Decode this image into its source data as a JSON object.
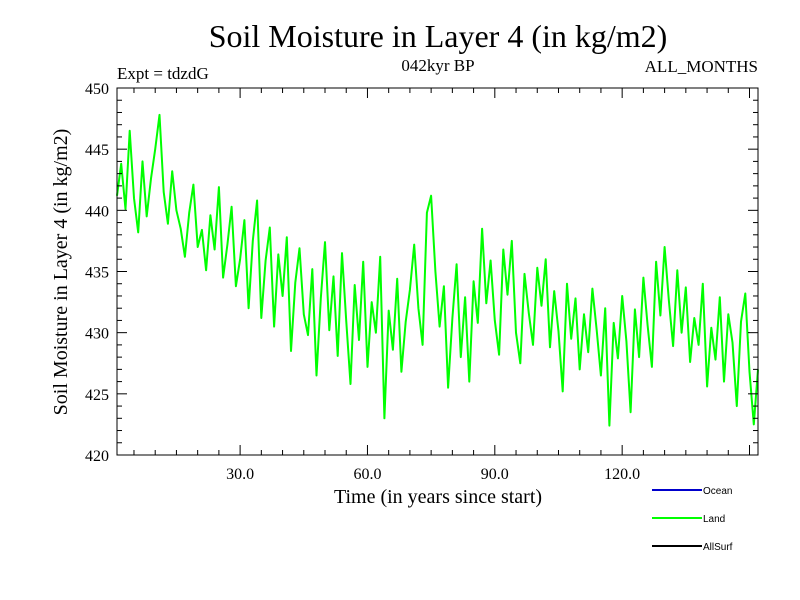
{
  "chart_data": {
    "type": "line",
    "title": "Soil Moisture in Layer 4 (in kg/m2)",
    "subtitle_left": "Expt = tdzdG",
    "subtitle_center": "042kyr BP",
    "subtitle_right": "ALL_MONTHS",
    "xlabel": "Time (in years since start)",
    "ylabel": "Soil Moisture in Layer 4 (in kg/m2)",
    "xlim": [
      1,
      152
    ],
    "ylim": [
      420,
      450
    ],
    "xticks": [
      30,
      60,
      90,
      120
    ],
    "xtick_labels": [
      "30.0",
      "60.0",
      "90.0",
      "120.0"
    ],
    "yticks": [
      420,
      425,
      430,
      435,
      440,
      445,
      450
    ],
    "ytick_labels": [
      "420",
      "425",
      "430",
      "435",
      "440",
      "445",
      "450"
    ],
    "grid": false,
    "legend_position": "bottom-right",
    "legend": [
      {
        "name": "Ocean",
        "color": "#0000cc"
      },
      {
        "name": "Land",
        "color": "#00ff00"
      },
      {
        "name": "AllSurf",
        "color": "#000000"
      }
    ],
    "series": [
      {
        "name": "Land",
        "color": "#00ff00",
        "x_start": 1,
        "x_step": 1,
        "values": [
          441.2,
          443.8,
          440.1,
          446.5,
          441.0,
          438.2,
          444.0,
          439.5,
          442.6,
          445.0,
          447.8,
          441.5,
          438.9,
          443.2,
          440.0,
          438.5,
          436.2,
          439.8,
          442.1,
          437.0,
          438.4,
          435.1,
          439.6,
          436.8,
          441.9,
          434.5,
          437.2,
          440.3,
          433.8,
          436.0,
          439.2,
          432.0,
          437.5,
          440.8,
          431.2,
          435.9,
          438.6,
          430.5,
          436.4,
          433.0,
          437.8,
          428.5,
          434.1,
          436.9,
          431.5,
          429.8,
          435.2,
          426.5,
          432.8,
          437.4,
          430.2,
          434.6,
          428.1,
          436.5,
          431.0,
          425.8,
          433.9,
          429.4,
          435.8,
          427.2,
          432.5,
          430.0,
          436.2,
          423.0,
          431.8,
          428.6,
          434.4,
          426.8,
          430.9,
          433.5,
          437.2,
          432.0,
          429.0,
          439.8,
          441.2,
          435.0,
          430.5,
          433.8,
          425.5,
          431.2,
          435.6,
          428.0,
          432.9,
          426.0,
          434.2,
          430.8,
          438.5,
          432.4,
          435.9,
          431.0,
          428.2,
          436.8,
          433.1,
          437.5,
          430.0,
          427.5,
          434.8,
          431.6,
          429.0,
          435.3,
          432.2,
          436.0,
          428.8,
          433.4,
          430.1,
          425.2,
          434.0,
          429.5,
          432.8,
          427.0,
          431.5,
          428.4,
          433.6,
          430.2,
          426.5,
          432.0,
          422.4,
          430.8,
          427.9,
          433.0,
          429.3,
          423.5,
          431.9,
          428.0,
          434.5,
          430.6,
          427.2,
          435.8,
          431.4,
          437.0,
          432.6,
          428.9,
          435.1,
          430.0,
          433.7,
          427.6,
          431.2,
          429.0,
          434.0,
          425.6,
          430.4,
          427.8,
          432.9,
          426.0,
          431.5,
          429.2,
          424.0,
          430.9,
          433.2,
          426.8,
          422.5,
          427.0
        ]
      }
    ]
  }
}
